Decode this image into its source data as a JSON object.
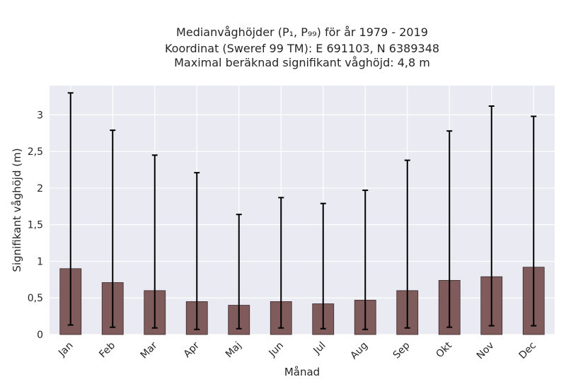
{
  "chart_data": {
    "type": "bar",
    "title_lines": [
      "Medianvåghöjder (P₁, P₉₉) för år 1979 - 2019",
      "Koordinat (Sweref 99 TM): E 691103, N 6389348",
      "Maximal beräknad signifikant våghöjd: 4,8 m"
    ],
    "xlabel": "Månad",
    "ylabel": "Signifikant våghöjd (m)",
    "categories": [
      "Jan",
      "Feb",
      "Mar",
      "Apr",
      "Maj",
      "Jun",
      "Jul",
      "Aug",
      "Sep",
      "Okt",
      "Nov",
      "Dec"
    ],
    "values": [
      0.9,
      0.71,
      0.6,
      0.45,
      0.4,
      0.45,
      0.42,
      0.47,
      0.6,
      0.74,
      0.79,
      0.92
    ],
    "lower": [
      0.13,
      0.1,
      0.09,
      0.07,
      0.08,
      0.09,
      0.08,
      0.07,
      0.09,
      0.1,
      0.12,
      0.12
    ],
    "upper": [
      3.3,
      2.79,
      2.45,
      2.21,
      1.64,
      1.87,
      1.79,
      1.97,
      2.38,
      2.78,
      3.12,
      2.98
    ],
    "ylim": [
      0,
      3.4
    ],
    "yticks": [
      0,
      0.5,
      1,
      1.5,
      2,
      2.5,
      3
    ],
    "ytick_labels": [
      "0",
      "0,5",
      "1",
      "1,5",
      "2",
      "2,5",
      "3"
    ],
    "grid": true,
    "colors": {
      "bar": "#7f5b5b",
      "bar_edge": "#3a2a2a",
      "plot_bg": "#eaeaf2",
      "grid": "#ffffff",
      "error": "#000000"
    }
  }
}
